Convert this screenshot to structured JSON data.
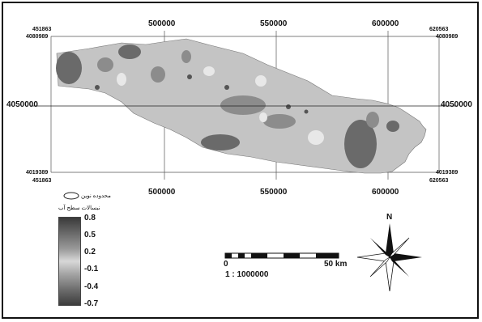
{
  "grid": {
    "x_ticks": [
      "500000",
      "550000",
      "600000"
    ],
    "y_ticks": [
      "4050000"
    ],
    "corners": {
      "top_left_x": "451863",
      "top_left_y": "4080989",
      "top_right_x": "620563",
      "top_right_y": "4080989",
      "bottom_left_x": "451863",
      "bottom_left_y": "4019389",
      "bottom_right_x": "620563",
      "bottom_right_y": "4019389"
    }
  },
  "legend": {
    "study_area_label": "محدوده نوین",
    "water_label": "نبسالات سطح آب",
    "values": [
      "0.8",
      "0.5",
      "0.2",
      "-0.1",
      "-0.4",
      "-0.7"
    ]
  },
  "scalebar": {
    "start": "0",
    "end": "50 km",
    "ratio": "1 : 1000000"
  },
  "north": {
    "label": "N"
  }
}
